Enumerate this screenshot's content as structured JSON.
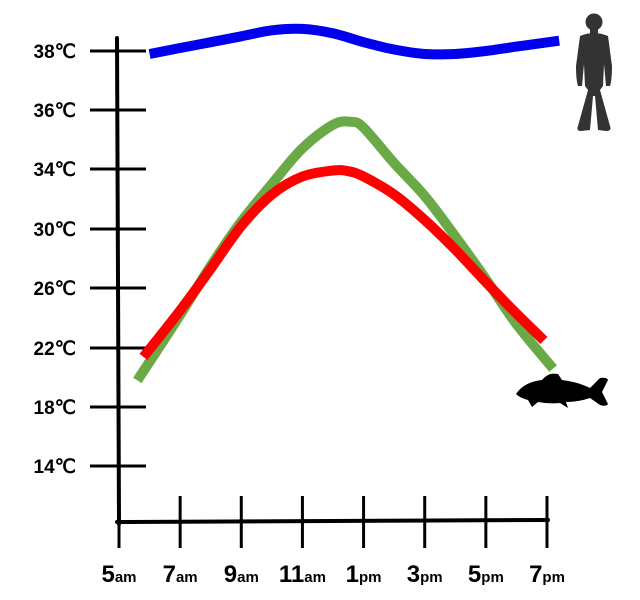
{
  "chart_data": {
    "type": "line",
    "title": "",
    "xlabel": "",
    "ylabel": "",
    "x_ticks": [
      {
        "value": 5,
        "main": "5",
        "suffix": "am"
      },
      {
        "value": 7,
        "main": "7",
        "suffix": "am"
      },
      {
        "value": 9,
        "main": "9",
        "suffix": "am"
      },
      {
        "value": 11,
        "main": "11",
        "suffix": "am"
      },
      {
        "value": 13,
        "main": "1",
        "suffix": "pm"
      },
      {
        "value": 15,
        "main": "3",
        "suffix": "pm"
      },
      {
        "value": 17,
        "main": "5",
        "suffix": "pm"
      },
      {
        "value": 19,
        "main": "7",
        "suffix": "pm"
      }
    ],
    "y_ticks": [
      {
        "value": 14,
        "label": "14℃"
      },
      {
        "value": 18,
        "label": "18℃"
      },
      {
        "value": 22,
        "label": "22℃"
      },
      {
        "value": 26,
        "label": "26℃"
      },
      {
        "value": 30,
        "label": "30℃"
      },
      {
        "value": 34,
        "label": "34℃"
      },
      {
        "value": 36,
        "label": "36℃"
      },
      {
        "value": 38,
        "label": "38℃"
      }
    ],
    "series": [
      {
        "color": "#0000ee",
        "points": [
          [
            6,
            37.9
          ],
          [
            7,
            38.1
          ],
          [
            8,
            38.3
          ],
          [
            9,
            38.5
          ],
          [
            10,
            38.7
          ],
          [
            11,
            38.75
          ],
          [
            12,
            38.6
          ],
          [
            13,
            38.3
          ],
          [
            14,
            38.05
          ],
          [
            15,
            37.9
          ],
          [
            16,
            37.9
          ],
          [
            17,
            38.0
          ],
          [
            18,
            38.15
          ],
          [
            19.4,
            38.35
          ]
        ]
      },
      {
        "color": "#6aaa46",
        "points": [
          [
            5.6,
            19.8
          ],
          [
            7,
            24.2
          ],
          [
            8,
            27.5
          ],
          [
            9,
            30.5
          ],
          [
            10,
            33.0
          ],
          [
            11,
            34.7
          ],
          [
            12,
            35.5
          ],
          [
            12.6,
            35.6
          ],
          [
            13,
            35.4
          ],
          [
            14,
            34.2
          ],
          [
            15,
            32.2
          ],
          [
            16,
            29.5
          ],
          [
            17,
            26.6
          ],
          [
            18,
            23.6
          ],
          [
            19.2,
            20.6
          ]
        ]
      },
      {
        "color": "#ff0000",
        "points": [
          [
            5.8,
            21.4
          ],
          [
            7,
            24.5
          ],
          [
            8,
            27.3
          ],
          [
            9,
            30.2
          ],
          [
            10,
            32.3
          ],
          [
            11,
            33.5
          ],
          [
            12,
            33.9
          ],
          [
            12.5,
            33.85
          ],
          [
            13,
            33.5
          ],
          [
            14,
            32.3
          ],
          [
            15,
            30.6
          ],
          [
            16,
            28.6
          ],
          [
            17,
            26.4
          ],
          [
            18,
            24.3
          ],
          [
            18.9,
            22.5
          ]
        ]
      }
    ],
    "ylim": [
      12,
      40
    ],
    "xlim": [
      5,
      19
    ],
    "grid": false,
    "legend": "none",
    "icons": [
      {
        "name": "human-silhouette-icon",
        "series_color": "#0000ee"
      },
      {
        "name": "fish-silhouette-icon",
        "series_color": "#6aaa46"
      }
    ]
  }
}
